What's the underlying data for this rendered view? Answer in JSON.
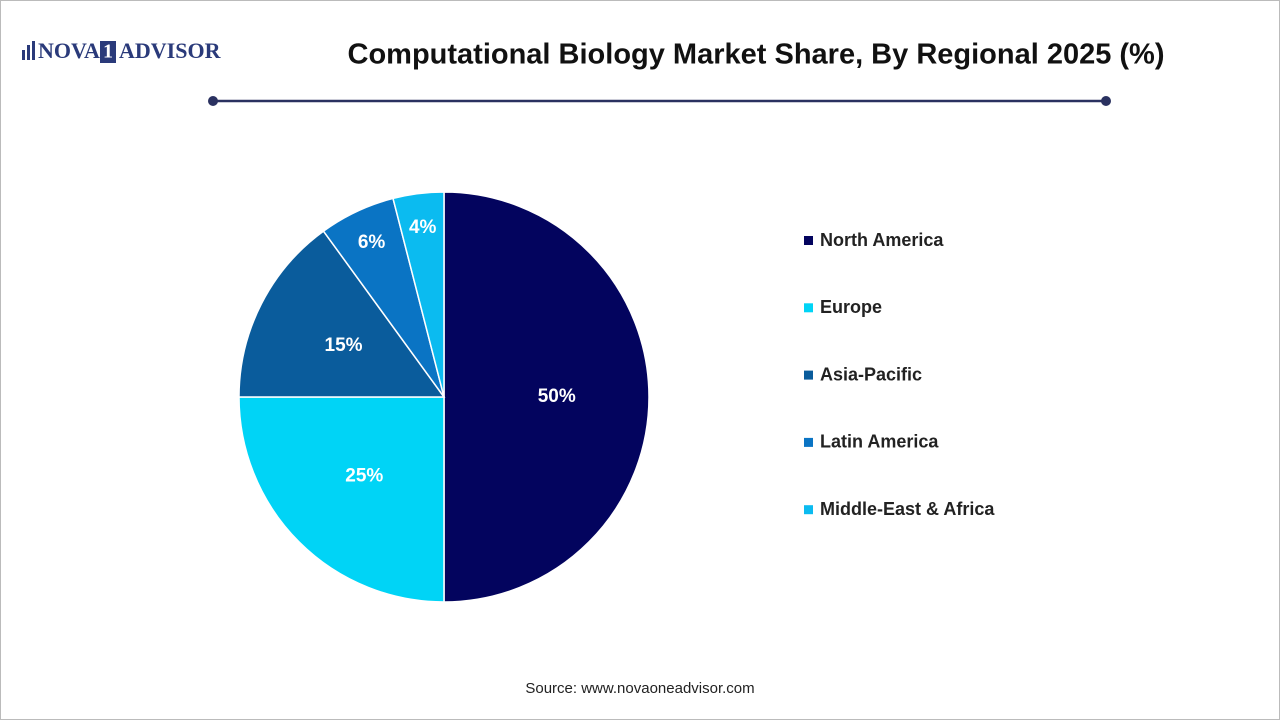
{
  "chart_data": {
    "type": "pie",
    "title": "Computational Biology Market Share, By Regional 2025 (%)",
    "logo": {
      "left": "NOVA",
      "mark": "1",
      "right": "ADVISOR"
    },
    "categories": [
      "North America",
      "Europe",
      "Asia-Pacific",
      "Latin America",
      "Middle-East & Africa"
    ],
    "values": [
      50,
      25,
      15,
      6,
      4
    ],
    "value_labels": [
      "50%",
      "25%",
      "15%",
      "6%",
      "4%"
    ],
    "colors": [
      "#03045e",
      "#00d4f6",
      "#0a5c9c",
      "#0a74c4",
      "#0bbbf0"
    ],
    "source": "Source: www.novaoneadvisor.com"
  }
}
